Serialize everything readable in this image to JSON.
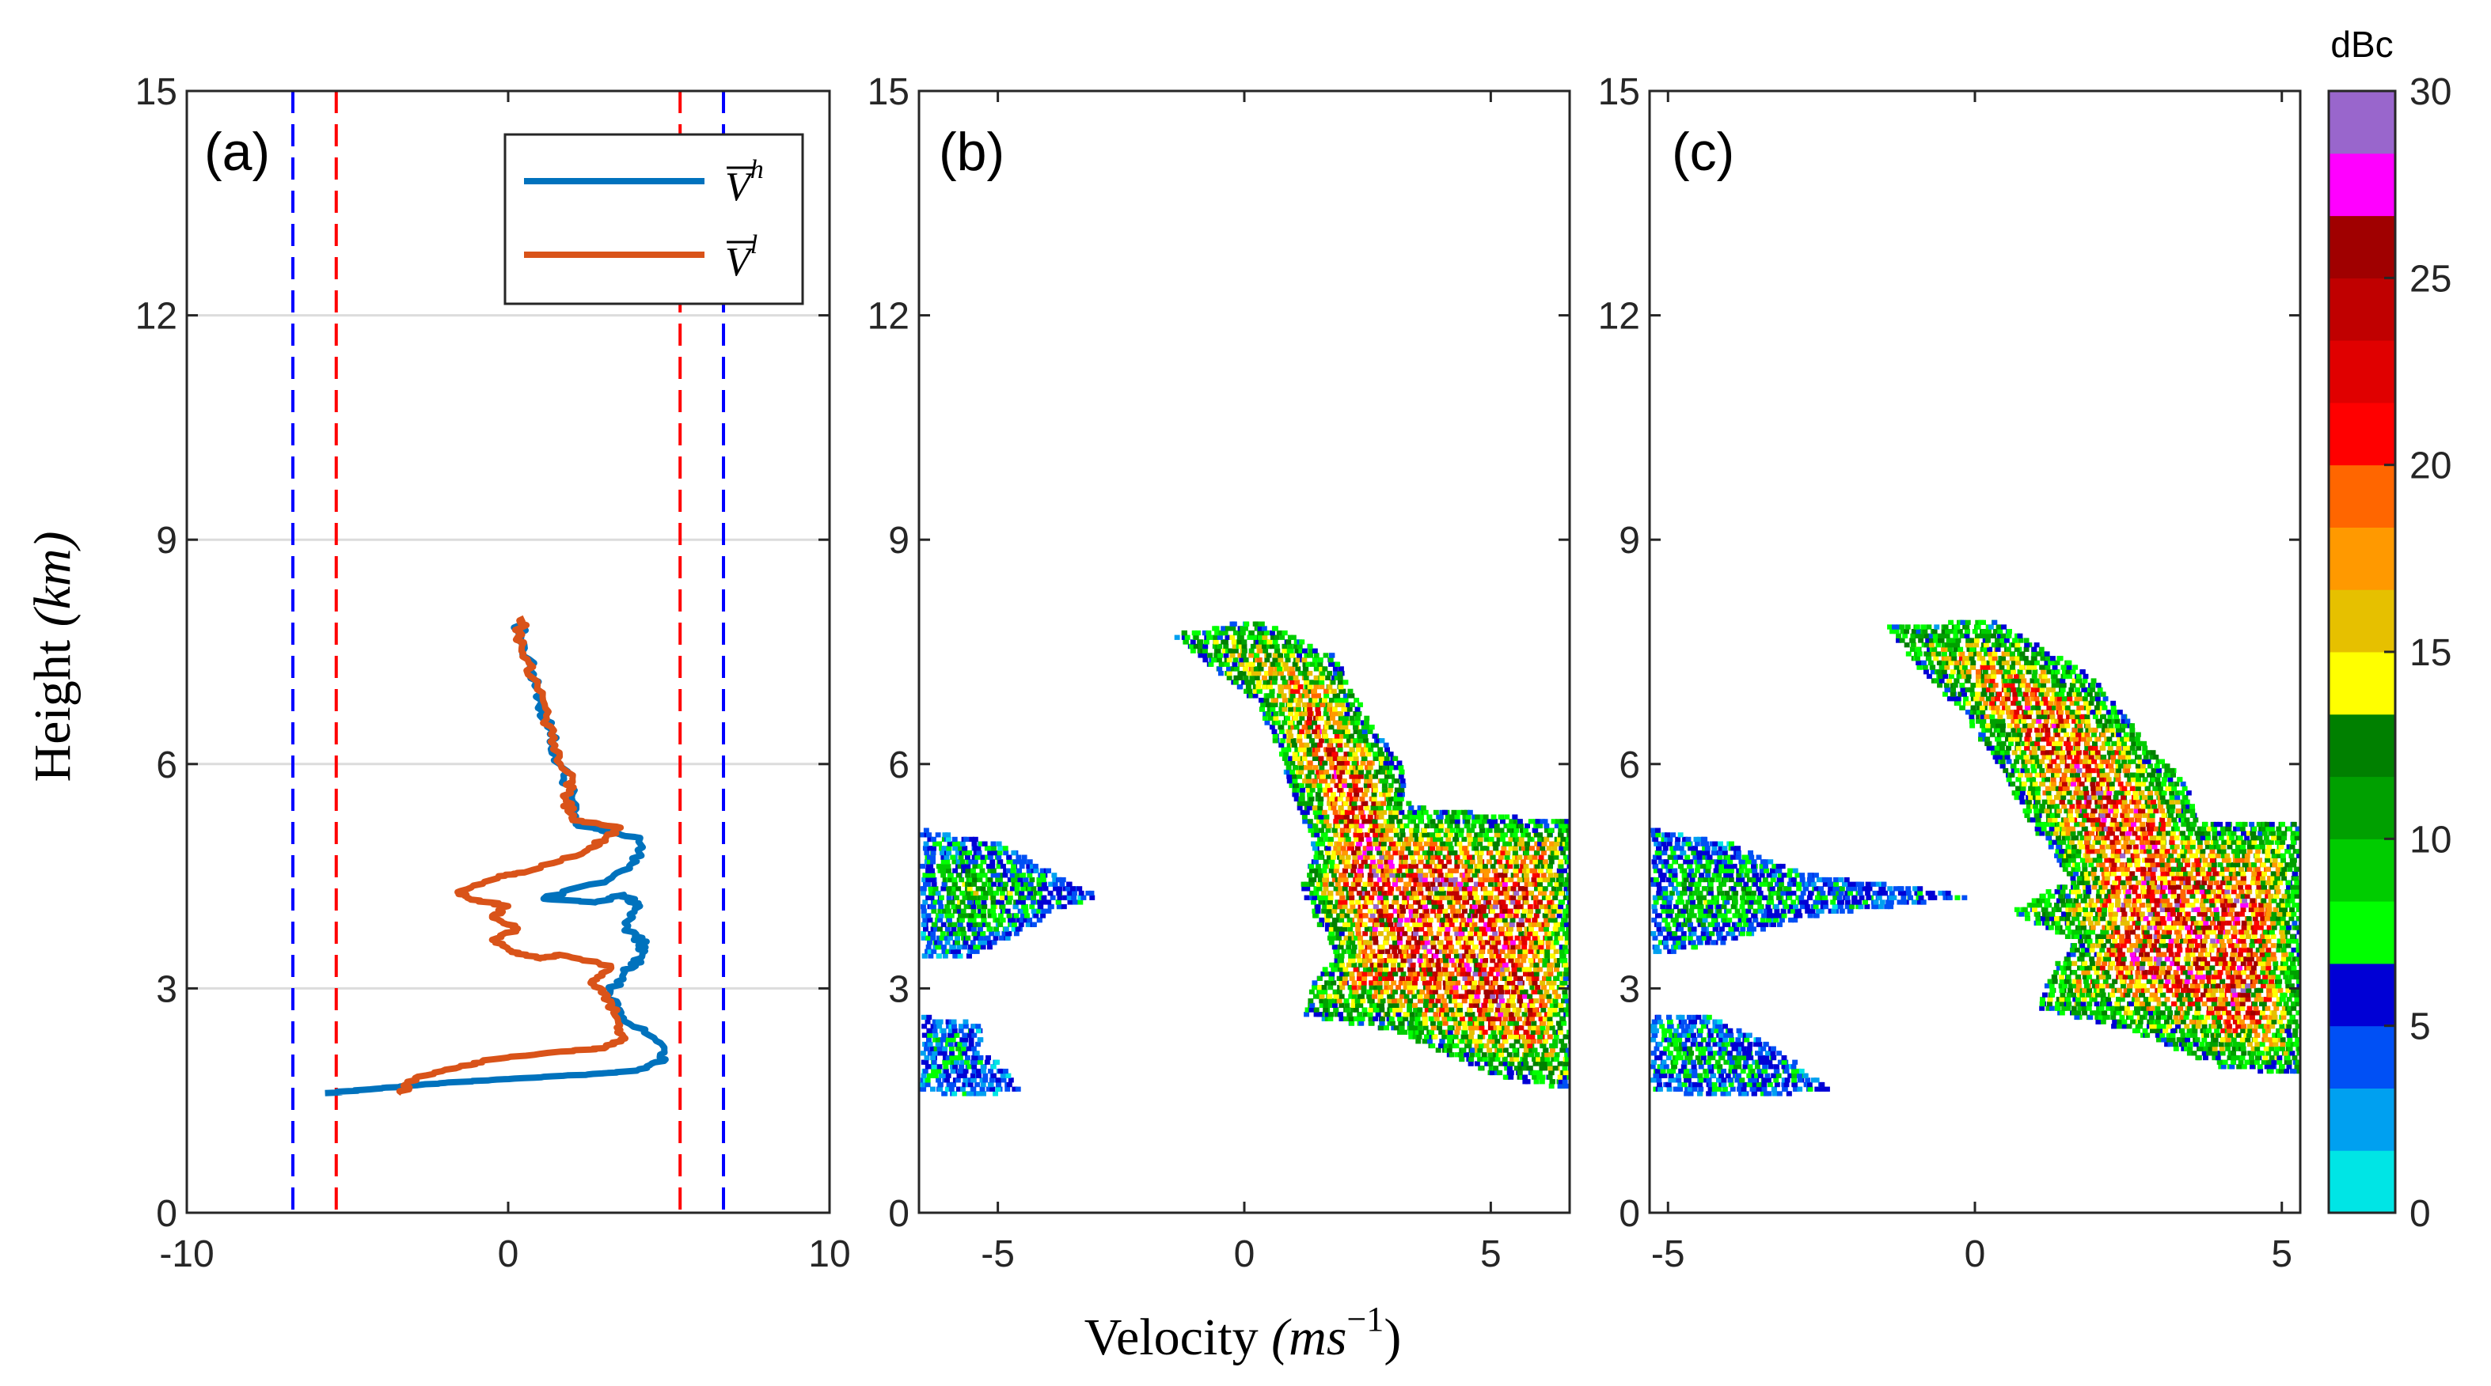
{
  "figure_labels": {
    "ylabel_word": "Height",
    "ylabel_unit": "(km)",
    "xlabel_word": "Velocity",
    "xlabel_unit_base": "(ms",
    "xlabel_unit_exp": "−1",
    "xlabel_unit_close": ")"
  },
  "colors": {
    "blue_series": "#0072BD",
    "orange_series": "#D95319",
    "blue_dashed": "#0000FF",
    "red_dashed": "#FF0000",
    "grid": "#DCDCDC"
  },
  "chart_data": [
    {
      "panel": "a",
      "panel_label": "(a)",
      "type": "line",
      "title": "",
      "xlim": [
        -10,
        10
      ],
      "ylim": [
        0,
        15
      ],
      "xticks": [
        "-10",
        "0",
        "10"
      ],
      "yticks": [
        "0",
        "3",
        "6",
        "9",
        "12",
        "15"
      ],
      "grid": "horizontal",
      "legend_position": "top-right",
      "legend": [
        {
          "base": "V",
          "sup": "h",
          "color": "#0072BD"
        },
        {
          "base": "V",
          "sup": "l",
          "color": "#D95319"
        }
      ],
      "vertical_dashed_lines": [
        {
          "x": -6.7,
          "color": "#0000FF"
        },
        {
          "x": -5.35,
          "color": "#FF0000"
        },
        {
          "x": 5.35,
          "color": "#FF0000"
        },
        {
          "x": 6.7,
          "color": "#0000FF"
        }
      ],
      "series": [
        {
          "name": "V^h",
          "color": "#0072BD",
          "points": [
            [
              -5.7,
              1.6
            ],
            [
              -4.3,
              1.65
            ],
            [
              -3.0,
              1.7
            ],
            [
              -1.5,
              1.75
            ],
            [
              0.5,
              1.8
            ],
            [
              2.5,
              1.85
            ],
            [
              4.0,
              1.9
            ],
            [
              4.9,
              2.05
            ],
            [
              4.6,
              2.3
            ],
            [
              3.6,
              2.6
            ],
            [
              3.1,
              2.9
            ],
            [
              3.6,
              3.2
            ],
            [
              4.1,
              3.4
            ],
            [
              4.2,
              3.6
            ],
            [
              3.7,
              3.8
            ],
            [
              4.1,
              4.1
            ],
            [
              3.6,
              4.25
            ],
            [
              2.7,
              4.15
            ],
            [
              1.1,
              4.2
            ],
            [
              3.1,
              4.45
            ],
            [
              4.0,
              4.7
            ],
            [
              4.1,
              5.0
            ],
            [
              3.0,
              5.1
            ],
            [
              2.1,
              5.2
            ],
            [
              2.0,
              5.6
            ],
            [
              1.6,
              6.0
            ],
            [
              1.3,
              6.4
            ],
            [
              1.0,
              6.8
            ],
            [
              0.8,
              7.2
            ],
            [
              0.5,
              7.6
            ],
            [
              0.3,
              7.9
            ]
          ]
        },
        {
          "name": "V^l",
          "color": "#D95319",
          "points": [
            [
              -3.3,
              1.6
            ],
            [
              -2.9,
              1.8
            ],
            [
              -1.5,
              1.95
            ],
            [
              -0.5,
              2.05
            ],
            [
              1.5,
              2.15
            ],
            [
              3.0,
              2.2
            ],
            [
              3.6,
              2.35
            ],
            [
              3.4,
              2.6
            ],
            [
              3.1,
              2.9
            ],
            [
              2.6,
              3.1
            ],
            [
              3.2,
              3.3
            ],
            [
              1.6,
              3.45
            ],
            [
              1.0,
              3.4
            ],
            [
              0.1,
              3.5
            ],
            [
              -0.5,
              3.65
            ],
            [
              0.3,
              3.8
            ],
            [
              -0.5,
              3.95
            ],
            [
              0.0,
              4.1
            ],
            [
              -1.2,
              4.2
            ],
            [
              -1.5,
              4.3
            ],
            [
              -0.3,
              4.5
            ],
            [
              0.5,
              4.55
            ],
            [
              2.3,
              4.8
            ],
            [
              3.0,
              5.0
            ],
            [
              3.5,
              5.15
            ],
            [
              2.0,
              5.25
            ],
            [
              1.8,
              5.5
            ],
            [
              2.0,
              5.8
            ],
            [
              1.4,
              6.2
            ],
            [
              1.2,
              6.6
            ],
            [
              0.9,
              7.0
            ],
            [
              0.6,
              7.4
            ],
            [
              0.3,
              7.7
            ],
            [
              0.5,
              7.95
            ]
          ]
        }
      ]
    },
    {
      "panel": "b",
      "panel_label": "(b)",
      "type": "heatmap",
      "xlim": [
        -6.6,
        6.6
      ],
      "ylim": [
        0,
        15
      ],
      "xticks": [
        "-5",
        "0",
        "5"
      ],
      "yticks": [
        "0",
        "3",
        "6",
        "9",
        "12",
        "15"
      ],
      "grid": "none",
      "regions": [
        {
          "name": "main echo",
          "outline": [
            [
              -1.5,
              7.7
            ],
            [
              0.2,
              7.9
            ],
            [
              1.8,
              7.4
            ],
            [
              2.5,
              6.5
            ],
            [
              3.2,
              5.9
            ],
            [
              3.3,
              5.4
            ],
            [
              6.6,
              5.2
            ],
            [
              6.6,
              1.6
            ],
            [
              5.0,
              1.8
            ],
            [
              3.0,
              2.4
            ],
            [
              1.2,
              2.6
            ],
            [
              1.3,
              3.0
            ],
            [
              1.8,
              3.4
            ],
            [
              1.1,
              4.3
            ],
            [
              1.4,
              4.8
            ],
            [
              1.0,
              5.5
            ],
            [
              0.6,
              6.2
            ],
            [
              0.2,
              6.8
            ],
            [
              -0.8,
              7.3
            ],
            [
              -1.5,
              7.7
            ]
          ],
          "peak_dbc": 22
        },
        {
          "name": "negative band",
          "outline": [
            [
              -6.6,
              5.1
            ],
            [
              -5.0,
              4.9
            ],
            [
              -3.9,
              4.5
            ],
            [
              -3.0,
              4.2
            ],
            [
              -3.9,
              4.0
            ],
            [
              -4.6,
              3.7
            ],
            [
              -5.6,
              3.4
            ],
            [
              -6.6,
              3.4
            ]
          ],
          "peak_dbc": 13
        },
        {
          "name": "negative low",
          "outline": [
            [
              -6.6,
              2.6
            ],
            [
              -5.4,
              2.5
            ],
            [
              -5.4,
              2.1
            ],
            [
              -5.0,
              2.0
            ],
            [
              -4.6,
              1.6
            ],
            [
              -5.8,
              1.5
            ],
            [
              -6.6,
              1.6
            ]
          ],
          "peak_dbc": 10
        }
      ]
    },
    {
      "panel": "c",
      "panel_label": "(c)",
      "type": "heatmap",
      "xlim": [
        -5.3,
        5.3
      ],
      "ylim": [
        0,
        15
      ],
      "xticks": [
        "-5",
        "0",
        "5"
      ],
      "yticks": [
        "0",
        "3",
        "6",
        "9",
        "12",
        "15"
      ],
      "grid": "none",
      "regions": [
        {
          "name": "main echo",
          "outline": [
            [
              -1.5,
              7.8
            ],
            [
              0.2,
              7.9
            ],
            [
              1.8,
              7.2
            ],
            [
              2.6,
              6.4
            ],
            [
              3.4,
              5.7
            ],
            [
              3.6,
              5.2
            ],
            [
              5.3,
              5.2
            ],
            [
              5.3,
              1.8
            ],
            [
              4.0,
              1.9
            ],
            [
              2.5,
              2.4
            ],
            [
              1.0,
              2.7
            ],
            [
              1.2,
              3.2
            ],
            [
              1.6,
              3.6
            ],
            [
              0.5,
              4.0
            ],
            [
              1.5,
              4.4
            ],
            [
              1.0,
              5.0
            ],
            [
              0.3,
              6.0
            ],
            [
              -0.3,
              6.7
            ],
            [
              -1.0,
              7.3
            ],
            [
              -1.5,
              7.8
            ]
          ],
          "peak_dbc": 22
        },
        {
          "name": "negative band",
          "outline": [
            [
              -5.3,
              5.1
            ],
            [
              -4.0,
              4.9
            ],
            [
              -2.8,
              4.5
            ],
            [
              0.0,
              4.2
            ],
            [
              -2.9,
              3.9
            ],
            [
              -4.0,
              3.6
            ],
            [
              -5.3,
              3.4
            ]
          ],
          "peak_dbc": 13
        },
        {
          "name": "negative low",
          "outline": [
            [
              -5.3,
              2.6
            ],
            [
              -4.4,
              2.6
            ],
            [
              -3.6,
              2.3
            ],
            [
              -3.0,
              2.0
            ],
            [
              -2.4,
              1.6
            ],
            [
              -4.0,
              1.5
            ],
            [
              -5.3,
              1.6
            ]
          ],
          "peak_dbc": 12
        }
      ]
    },
    {
      "panel": "colorbar",
      "type": "colorbar",
      "title": "dBc",
      "range": [
        0,
        30
      ],
      "ticks": [
        "0",
        "5",
        "10",
        "15",
        "20",
        "25",
        "30"
      ],
      "colors": [
        "#00E5E5",
        "#00A0F0",
        "#0050F5",
        "#0000D5",
        "#00FF00",
        "#00CC00",
        "#00A000",
        "#008000",
        "#FFFF00",
        "#E6C000",
        "#FF9900",
        "#FF6600",
        "#FF0000",
        "#E00000",
        "#C00000",
        "#A00000",
        "#FF00FF",
        "#9966CC"
      ]
    }
  ]
}
